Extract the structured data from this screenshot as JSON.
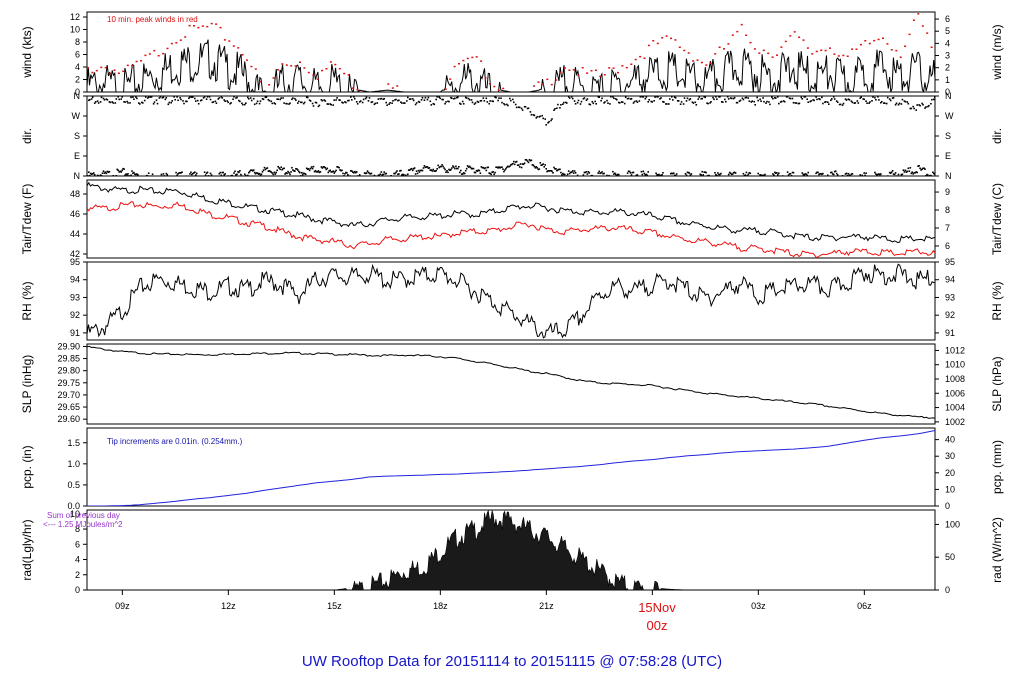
{
  "title": "UW Rooftop Data for 20151114  to  20151115 @ 07:58:28  (UTC)",
  "day_label": [
    "15Nov",
    "00z"
  ],
  "x_ticks": [
    "09z",
    "12z",
    "15z",
    "18z",
    "21z",
    "00z",
    "03z",
    "06z"
  ],
  "colors": {
    "primary": "#000000",
    "peak": "#dd1111",
    "tdew": "#ee1111",
    "precip": "#2222dd",
    "annot_precip": "#1515aa",
    "annot_rad": "#9933cc",
    "title": "#1515c8"
  },
  "chart_data": [
    {
      "id": "wind",
      "type": "line",
      "ylabel": "wind (kts)",
      "ylabel_right": "wind (m/s)",
      "ylim": [
        0,
        12.8
      ],
      "yticks": [
        0,
        2,
        4,
        6,
        8,
        10,
        12
      ],
      "ylim_right": [
        0,
        6.58
      ],
      "yticks_right": [
        0,
        1,
        2,
        3,
        4,
        5,
        6
      ],
      "annotation": "10 min. peak winds in red",
      "x": [
        8.0,
        8.5,
        9.0,
        9.5,
        10.0,
        10.5,
        11.0,
        11.5,
        12.0,
        12.5,
        13.0,
        13.5,
        14.0,
        14.5,
        15.0,
        15.5,
        16.0,
        16.5,
        17.0,
        17.5,
        18.0,
        18.5,
        19.0,
        19.5,
        20.0,
        20.5,
        21.0,
        21.5,
        22.0,
        22.5,
        23.0,
        23.5,
        24.0,
        24.5,
        25.0,
        25.5,
        26.0,
        26.5,
        27.0,
        27.5,
        28.0,
        28.5,
        29.0,
        29.5,
        30.0,
        30.5,
        31.0,
        31.5,
        32.0
      ],
      "series": [
        {
          "name": "wind",
          "values": [
            2.0,
            2.5,
            1.5,
            2.8,
            4.0,
            5.5,
            6.0,
            6.5,
            5.0,
            3.5,
            0.0,
            2.5,
            3.0,
            1.5,
            2.5,
            0.5,
            0.0,
            0.3,
            0.0,
            0.0,
            0.0,
            2.5,
            3.0,
            0.5,
            0.0,
            0.0,
            0.5,
            2.5,
            1.5,
            1.0,
            2.0,
            3.0,
            4.0,
            4.5,
            3.5,
            2.5,
            4.0,
            5.5,
            4.0,
            3.5,
            5.0,
            3.5,
            4.0,
            3.0,
            4.0,
            5.0,
            3.5,
            4.5,
            3.0
          ]
        },
        {
          "name": "peak",
          "values": [
            3.8,
            4.2,
            3.0,
            4.8,
            6.5,
            9.0,
            10.0,
            10.5,
            8.5,
            6.0,
            0.0,
            4.5,
            5.0,
            3.0,
            4.5,
            1.5,
            0.0,
            0.8,
            0.0,
            0.0,
            0.0,
            4.5,
            5.0,
            1.5,
            0.0,
            0.0,
            1.5,
            4.5,
            3.0,
            2.5,
            4.0,
            5.5,
            7.5,
            8.5,
            6.5,
            4.5,
            7.0,
            10.0,
            7.0,
            6.5,
            9.0,
            6.5,
            7.5,
            5.5,
            7.5,
            9.0,
            6.5,
            12.0,
            5.5
          ]
        }
      ]
    },
    {
      "id": "dir",
      "type": "scatter",
      "ylabel": "dir.",
      "ylabel_right": "dir.",
      "ylim": [
        0,
        360
      ],
      "yticks": [
        0,
        90,
        180,
        270,
        360
      ],
      "ytick_labels": [
        "N",
        "E",
        "S",
        "W",
        "N"
      ],
      "x": [
        8.0,
        8.5,
        9.0,
        9.5,
        10.0,
        10.5,
        11.0,
        11.5,
        12.0,
        12.5,
        13.0,
        13.5,
        14.0,
        14.5,
        15.0,
        15.5,
        16.0,
        16.5,
        17.0,
        17.5,
        18.0,
        18.5,
        19.0,
        19.5,
        20.0,
        20.5,
        21.0,
        21.5,
        22.0,
        22.5,
        23.0,
        23.5,
        24.0,
        24.5,
        25.0,
        25.5,
        26.0,
        26.5,
        27.0,
        27.5,
        28.0,
        28.5,
        29.0,
        29.5,
        30.0,
        30.5,
        31.0,
        31.5,
        32.0
      ],
      "series": [
        {
          "name": "dir_low",
          "values": [
            10,
            15,
            25,
            10,
            5,
            10,
            10,
            8,
            12,
            20,
            30,
            35,
            25,
            40,
            35,
            20,
            15,
            10,
            20,
            40,
            45,
            35,
            40,
            30,
            60,
            70,
            40,
            20,
            10,
            15,
            10,
            15,
            10,
            5,
            10,
            12,
            8,
            10,
            5,
            10,
            10,
            8,
            15,
            10,
            5,
            10,
            20,
            40,
            10
          ]
        },
        {
          "name": "dir_high",
          "values": [
            345,
            350,
            355,
            350,
            352,
            348,
            350,
            355,
            350,
            345,
            350,
            345,
            350,
            340,
            345,
            350,
            345,
            340,
            350,
            345,
            350,
            348,
            345,
            350,
            340,
            300,
            250,
            355,
            350,
            348,
            352,
            350,
            355,
            350,
            345,
            350,
            355,
            350,
            345,
            352,
            350,
            355,
            350,
            345,
            355,
            350,
            345,
            320,
            350
          ]
        }
      ]
    },
    {
      "id": "temp",
      "type": "line",
      "ylabel": "Tair/Tdew (F)",
      "ylabel_right": "Tair/Tdew (C)",
      "ylim": [
        41.6,
        49.4
      ],
      "yticks": [
        42,
        44,
        46,
        48
      ],
      "ylim_right": [
        5.33,
        9.67
      ],
      "yticks_right": [
        6,
        7,
        8,
        9
      ],
      "x": [
        8.0,
        8.5,
        9.0,
        9.5,
        10.0,
        10.5,
        11.0,
        11.5,
        12.0,
        12.5,
        13.0,
        13.5,
        14.0,
        14.5,
        15.0,
        15.5,
        16.0,
        16.5,
        17.0,
        17.5,
        18.0,
        18.5,
        19.0,
        19.5,
        20.0,
        20.5,
        21.0,
        21.5,
        22.0,
        22.5,
        23.0,
        23.5,
        24.0,
        24.5,
        25.0,
        25.5,
        26.0,
        26.5,
        27.0,
        27.5,
        28.0,
        28.5,
        29.0,
        29.5,
        30.0,
        30.5,
        31.0,
        31.5,
        32.0
      ],
      "series": [
        {
          "name": "Tair",
          "values": [
            49.0,
            48.7,
            48.5,
            48.6,
            48.4,
            48.5,
            48.1,
            47.6,
            47.3,
            46.9,
            46.6,
            46.3,
            46.0,
            45.6,
            45.4,
            45.0,
            45.2,
            45.6,
            45.8,
            45.9,
            46.0,
            46.2,
            46.1,
            46.4,
            46.8,
            47.0,
            46.8,
            46.5,
            46.4,
            46.3,
            46.4,
            46.2,
            46.0,
            45.6,
            45.2,
            45.0,
            44.7,
            44.5,
            44.5,
            44.3,
            44.0,
            43.8,
            43.8,
            43.9,
            43.9,
            43.7,
            43.6,
            43.7,
            43.6
          ]
        },
        {
          "name": "Tdew",
          "values": [
            46.8,
            46.7,
            47.0,
            47.1,
            46.9,
            47.1,
            46.7,
            46.1,
            45.8,
            45.3,
            45.0,
            44.4,
            43.9,
            43.6,
            43.4,
            43.0,
            43.2,
            43.6,
            43.7,
            43.9,
            43.9,
            44.3,
            44.4,
            44.5,
            44.9,
            45.2,
            44.6,
            44.4,
            44.6,
            44.7,
            44.8,
            44.5,
            44.3,
            43.9,
            43.6,
            43.4,
            43.1,
            42.8,
            42.7,
            42.5,
            42.2,
            42.1,
            42.2,
            42.4,
            42.4,
            42.3,
            42.2,
            42.4,
            42.2
          ]
        }
      ]
    },
    {
      "id": "rh",
      "type": "line",
      "ylabel": "RH (%)",
      "ylabel_right": "RH (%)",
      "ylim": [
        90.6,
        95.0
      ],
      "yticks": [
        91,
        92,
        93,
        94,
        95
      ],
      "x": [
        8.0,
        8.5,
        9.0,
        9.5,
        10.0,
        10.5,
        11.0,
        11.5,
        12.0,
        12.5,
        13.0,
        13.5,
        14.0,
        14.5,
        15.0,
        15.5,
        16.0,
        16.5,
        17.0,
        17.5,
        18.0,
        18.5,
        19.0,
        19.5,
        20.0,
        20.5,
        21.0,
        21.5,
        22.0,
        22.5,
        23.0,
        23.5,
        24.0,
        24.5,
        25.0,
        25.5,
        26.0,
        26.5,
        27.0,
        27.5,
        28.0,
        28.5,
        29.0,
        29.5,
        30.0,
        30.5,
        31.0,
        31.5,
        32.0
      ],
      "series": [
        {
          "name": "RH",
          "values": [
            91.2,
            91.6,
            92.5,
            93.8,
            94.3,
            94.1,
            93.8,
            93.6,
            93.9,
            93.7,
            94.2,
            94.0,
            93.4,
            94.3,
            94.5,
            94.4,
            94.6,
            94.2,
            94.3,
            94.5,
            94.6,
            94.2,
            93.6,
            93.0,
            92.4,
            91.8,
            91.2,
            91.4,
            92.2,
            93.4,
            93.9,
            93.6,
            94.0,
            94.2,
            93.7,
            93.2,
            93.6,
            94.1,
            93.3,
            93.7,
            93.9,
            94.0,
            93.7,
            94.1,
            94.7,
            94.5,
            94.6,
            94.2,
            94.4
          ]
        }
      ]
    },
    {
      "id": "slp",
      "type": "line",
      "ylabel": "SLP (inHg)",
      "ylabel_right": "SLP (hPa)",
      "ylim": [
        29.58,
        29.91
      ],
      "yticks": [
        29.6,
        29.65,
        29.7,
        29.75,
        29.8,
        29.85,
        29.9
      ],
      "ytick_labels": [
        "29.60",
        "29.65",
        "29.70",
        "29.75",
        "29.80",
        "29.85",
        "29.90"
      ],
      "ylim_right": [
        1001.7,
        1012.9
      ],
      "yticks_right": [
        1002,
        1004,
        1006,
        1008,
        1010,
        1012
      ],
      "x": [
        8.0,
        8.5,
        9.0,
        9.5,
        10.0,
        10.5,
        11.0,
        11.5,
        12.0,
        12.5,
        13.0,
        13.5,
        14.0,
        14.5,
        15.0,
        15.5,
        16.0,
        16.5,
        17.0,
        17.5,
        18.0,
        18.5,
        19.0,
        19.5,
        20.0,
        20.5,
        21.0,
        21.5,
        22.0,
        22.5,
        23.0,
        23.5,
        24.0,
        24.5,
        25.0,
        25.5,
        26.0,
        26.5,
        27.0,
        27.5,
        28.0,
        28.5,
        29.0,
        29.5,
        30.0,
        30.5,
        31.0,
        31.5,
        32.0
      ],
      "series": [
        {
          "name": "SLP",
          "values": [
            29.9,
            29.89,
            29.88,
            29.875,
            29.87,
            29.87,
            29.868,
            29.868,
            29.87,
            29.872,
            29.873,
            29.875,
            29.874,
            29.872,
            29.87,
            29.868,
            29.865,
            29.864,
            29.866,
            29.864,
            29.86,
            29.852,
            29.84,
            29.828,
            29.815,
            29.8,
            29.79,
            29.775,
            29.76,
            29.752,
            29.748,
            29.745,
            29.74,
            29.73,
            29.72,
            29.71,
            29.702,
            29.695,
            29.688,
            29.68,
            29.672,
            29.665,
            29.655,
            29.645,
            29.635,
            29.625,
            29.618,
            29.61,
            29.61
          ]
        }
      ]
    },
    {
      "id": "pcp",
      "type": "line",
      "ylabel": "pcp. (in)",
      "ylabel_right": "pcp. (mm)",
      "ylim": [
        0,
        1.85
      ],
      "yticks": [
        0,
        0.5,
        1.0,
        1.5
      ],
      "ytick_labels": [
        "0.0",
        "0.5",
        "1.0",
        "1.5"
      ],
      "ylim_right": [
        0,
        47
      ],
      "yticks_right": [
        0,
        10,
        20,
        30,
        40
      ],
      "annotation": "Tip increments are 0.01in. (0.254mm.)",
      "x": [
        8.0,
        8.5,
        9.0,
        9.5,
        10.0,
        10.5,
        11.0,
        11.5,
        12.0,
        12.5,
        13.0,
        13.5,
        14.0,
        14.5,
        15.0,
        15.5,
        16.0,
        16.5,
        17.0,
        17.5,
        18.0,
        18.5,
        19.0,
        19.5,
        20.0,
        20.5,
        21.0,
        21.5,
        22.0,
        22.5,
        23.0,
        23.5,
        24.0,
        24.5,
        25.0,
        25.5,
        26.0,
        26.5,
        27.0,
        27.5,
        28.0,
        28.5,
        29.0,
        29.5,
        30.0,
        30.5,
        31.0,
        31.5,
        32.0
      ],
      "series": [
        {
          "name": "precip",
          "values": [
            0.0,
            0.0,
            0.01,
            0.03,
            0.07,
            0.11,
            0.16,
            0.2,
            0.25,
            0.3,
            0.37,
            0.43,
            0.49,
            0.55,
            0.59,
            0.63,
            0.69,
            0.71,
            0.72,
            0.73,
            0.75,
            0.76,
            0.78,
            0.8,
            0.82,
            0.85,
            0.88,
            0.91,
            0.94,
            0.98,
            1.03,
            1.07,
            1.1,
            1.15,
            1.19,
            1.22,
            1.26,
            1.29,
            1.31,
            1.33,
            1.35,
            1.38,
            1.42,
            1.49,
            1.56,
            1.62,
            1.66,
            1.71,
            1.79
          ]
        }
      ]
    },
    {
      "id": "rad",
      "type": "area",
      "ylabel": "rad(Lgly/hr)",
      "ylabel_right": "rad (W/m^2)",
      "ylim": [
        0,
        10.5
      ],
      "yticks": [
        0,
        2,
        4,
        6,
        8,
        10
      ],
      "ylim_right": [
        0,
        122
      ],
      "yticks_right": [
        0,
        50,
        100
      ],
      "annotation": [
        "Sum of previous day",
        "<--- 1.25 MJoules/m^2"
      ],
      "x": [
        15.0,
        15.5,
        16.0,
        16.5,
        17.0,
        17.5,
        18.0,
        18.5,
        19.0,
        19.5,
        20.0,
        20.5,
        21.0,
        21.5,
        22.0,
        22.5,
        23.0,
        23.5,
        24.0,
        24.5,
        25.0
      ],
      "series": [
        {
          "name": "rad",
          "values": [
            0.0,
            0.3,
            0.8,
            1.8,
            3.0,
            3.5,
            5.5,
            7.5,
            8.5,
            10.0,
            9.5,
            8.5,
            7.5,
            6.0,
            4.5,
            3.0,
            1.5,
            0.8,
            0.3,
            0.1,
            0.0
          ]
        }
      ]
    }
  ]
}
